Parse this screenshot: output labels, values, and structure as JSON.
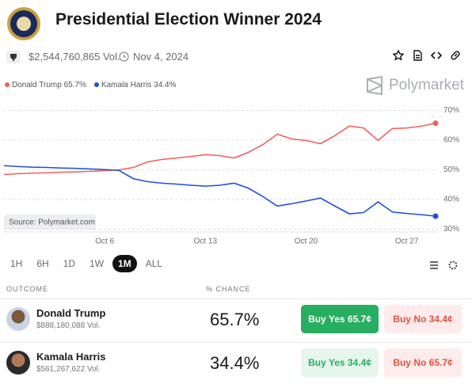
{
  "header": {
    "title": "Presidential Election Winner 2024",
    "volume": "$2,544,760,865 Vol.",
    "date": "Nov 4, 2024"
  },
  "brand": "Polymarket",
  "chart_data": {
    "type": "line",
    "source": "Source: Polymarket.com",
    "x": [
      "Sep 29",
      "Sep 30",
      "Oct 1",
      "Oct 2",
      "Oct 3",
      "Oct 4",
      "Oct 5",
      "Oct 6",
      "Oct 7",
      "Oct 8",
      "Oct 9",
      "Oct 10",
      "Oct 11",
      "Oct 12",
      "Oct 13",
      "Oct 14",
      "Oct 15",
      "Oct 16",
      "Oct 17",
      "Oct 18",
      "Oct 19",
      "Oct 20",
      "Oct 21",
      "Oct 22",
      "Oct 23",
      "Oct 24",
      "Oct 25",
      "Oct 26",
      "Oct 27",
      "Oct 28",
      "Oct 29"
    ],
    "series": [
      {
        "name": "Donald Trump",
        "color": "#f0605d",
        "values": [
          48.4,
          48.7,
          48.9,
          49.0,
          49.2,
          49.3,
          49.5,
          49.7,
          50.0,
          50.8,
          52.7,
          53.5,
          54.0,
          54.5,
          55.1,
          54.8,
          54.0,
          55.9,
          58.5,
          62.0,
          60.4,
          59.9,
          58.8,
          61.5,
          64.7,
          64.1,
          59.9,
          63.9,
          64.1,
          64.7,
          65.7
        ]
      },
      {
        "name": "Kamala Harris",
        "color": "#1f4fd8",
        "values": [
          51.4,
          51.1,
          50.9,
          50.8,
          50.6,
          50.5,
          50.3,
          50.1,
          49.8,
          47.0,
          46.0,
          45.5,
          45.2,
          44.8,
          44.5,
          44.8,
          45.5,
          43.8,
          41.0,
          37.8,
          38.6,
          39.5,
          40.5,
          37.8,
          35.2,
          35.6,
          39.2,
          35.8,
          35.3,
          34.9,
          34.4
        ]
      }
    ],
    "xticks": [
      "Oct 6",
      "Oct 13",
      "Oct 20",
      "Oct 27"
    ],
    "ylim": [
      28,
      72
    ],
    "yticks": [
      {
        "value": 30,
        "label": "30%"
      },
      {
        "value": 40,
        "label": "40%"
      },
      {
        "value": 50,
        "label": "50%"
      },
      {
        "value": 60,
        "label": "60%"
      },
      {
        "value": 70,
        "label": "70%"
      }
    ],
    "grid": true
  },
  "timeframes": {
    "options": [
      "1H",
      "6H",
      "1D",
      "1W",
      "1M",
      "ALL"
    ],
    "active": "1M"
  },
  "table": {
    "outcome_header": "OUTCOME",
    "chance_header": "% CHANCE",
    "outcomes": [
      {
        "name": "Donald Trump",
        "volume": "$888,180,088 Vol.",
        "chance": "65.7%",
        "buy_yes": "Buy Yes 65.7¢",
        "buy_no": "Buy No 34.4¢"
      },
      {
        "name": "Kamala Harris",
        "volume": "$561,267,622 Vol.",
        "chance": "34.4%",
        "buy_yes": "Buy Yes 34.4¢",
        "buy_no": "Buy No 65.7¢"
      }
    ]
  }
}
